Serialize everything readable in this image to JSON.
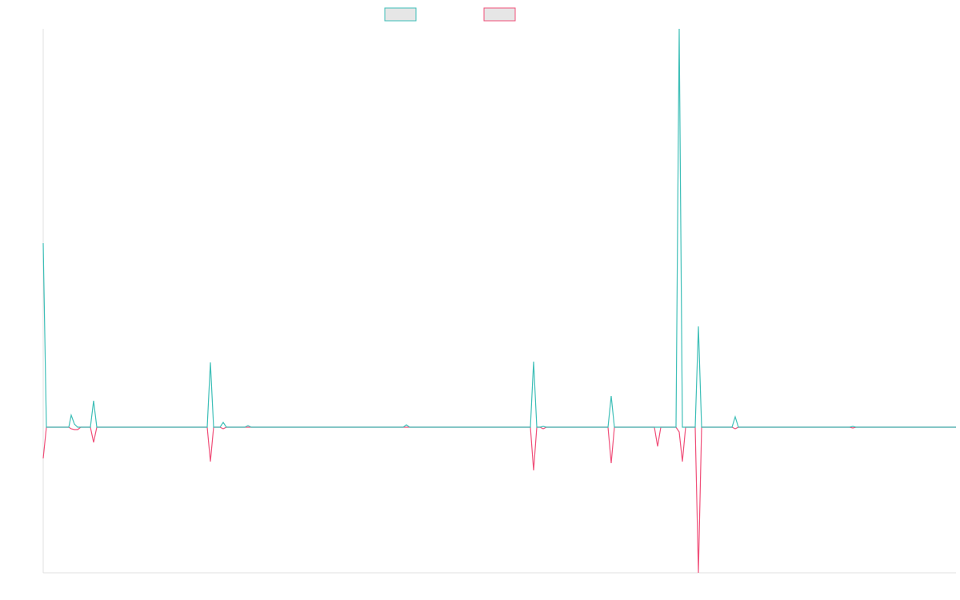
{
  "chart_data": {
    "type": "line",
    "x": [
      0,
      4,
      32,
      35,
      39,
      43,
      47,
      59,
      63,
      67,
      205,
      209,
      213,
      221,
      225,
      229,
      252,
      256,
      260,
      450,
      454,
      458,
      609,
      613,
      617,
      621,
      625,
      629,
      706,
      710,
      714,
      764,
      768,
      772,
      791,
      795,
      799,
      803,
      815,
      819,
      823,
      861,
      865,
      869,
      1008,
      1012,
      1016,
      1141
    ],
    "xlim": [
      0,
      1141
    ],
    "ylim": [
      -182,
      498
    ],
    "series": [
      {
        "color": "#3fbfb8",
        "values": [
          230,
          0,
          0,
          15,
          4,
          0,
          0,
          0,
          33,
          0,
          0,
          81,
          0,
          0,
          6,
          0,
          0,
          2,
          0,
          0,
          3,
          0,
          0,
          82,
          0,
          0,
          1,
          0,
          0,
          39,
          0,
          0,
          0,
          0,
          0,
          498,
          0,
          0,
          0,
          126,
          0,
          0,
          13,
          0,
          0,
          1,
          0,
          0
        ]
      },
      {
        "color": "#f0507a",
        "values": [
          -39,
          0,
          0,
          -2,
          -3,
          -3,
          0,
          0,
          -19,
          0,
          0,
          -43,
          0,
          0,
          -2,
          0,
          0,
          0,
          0,
          0,
          0,
          0,
          0,
          -54,
          0,
          0,
          -2,
          0,
          0,
          -45,
          0,
          0,
          -24,
          0,
          0,
          -6,
          -43,
          0,
          0,
          -182,
          0,
          0,
          -2,
          0,
          0,
          -1,
          0,
          0
        ]
      }
    ],
    "legend": "top"
  }
}
